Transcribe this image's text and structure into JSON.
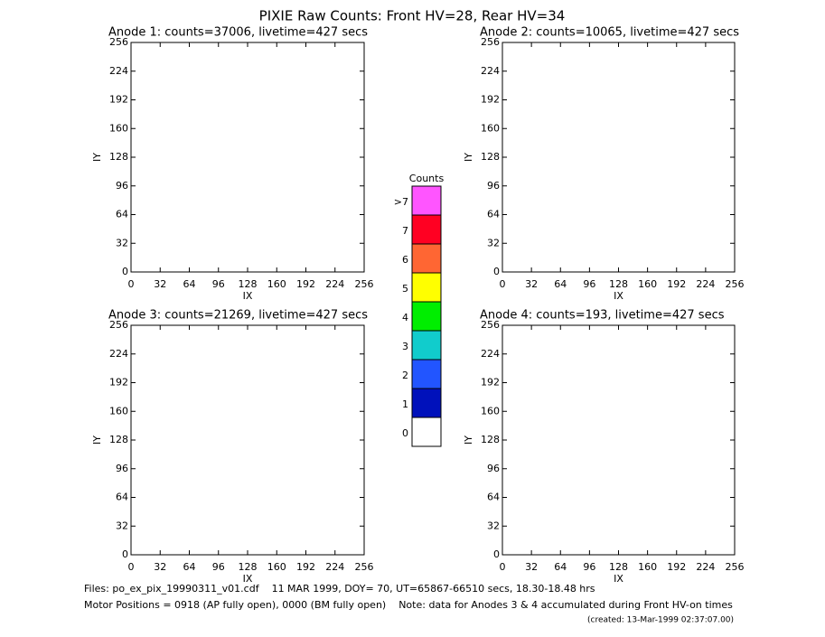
{
  "title": "PIXIE Raw Counts:  Front HV=28, Rear HV=34",
  "chart_data": [
    {
      "type": "image",
      "title": "Anode 1: counts=37006, livetime=427 secs",
      "xlabel": "IX",
      "ylabel": "IY",
      "xlim": [
        0,
        256
      ],
      "ylim": [
        0,
        256
      ],
      "xticks": [
        0,
        32,
        64,
        96,
        128,
        160,
        192,
        224,
        256
      ],
      "yticks": [
        0,
        32,
        64,
        96,
        128,
        160,
        192,
        224,
        256
      ]
    },
    {
      "type": "image",
      "title": "Anode 2: counts=10065, livetime=427 secs",
      "xlabel": "IX",
      "ylabel": "IY",
      "xlim": [
        0,
        256
      ],
      "ylim": [
        0,
        256
      ],
      "xticks": [
        0,
        32,
        64,
        96,
        128,
        160,
        192,
        224,
        256
      ],
      "yticks": [
        0,
        32,
        64,
        96,
        128,
        160,
        192,
        224,
        256
      ]
    },
    {
      "type": "image",
      "title": "Anode 3: counts=21269, livetime=427 secs",
      "xlabel": "IX",
      "ylabel": "IY",
      "xlim": [
        0,
        256
      ],
      "ylim": [
        0,
        256
      ],
      "xticks": [
        0,
        32,
        64,
        96,
        128,
        160,
        192,
        224,
        256
      ],
      "yticks": [
        0,
        32,
        64,
        96,
        128,
        160,
        192,
        224,
        256
      ]
    },
    {
      "type": "image",
      "title": "Anode 4: counts=193, livetime=427 secs",
      "xlabel": "IX",
      "ylabel": "IY",
      "xlim": [
        0,
        256
      ],
      "ylim": [
        0,
        256
      ],
      "xticks": [
        0,
        32,
        64,
        96,
        128,
        160,
        192,
        224,
        256
      ],
      "yticks": [
        0,
        32,
        64,
        96,
        128,
        160,
        192,
        224,
        256
      ]
    }
  ],
  "colorbar": {
    "title": "Counts",
    "levels": [
      {
        "label": ">7",
        "color": "#ff55ff"
      },
      {
        "label": "7",
        "color": "#ff0022"
      },
      {
        "label": "6",
        "color": "#ff6633"
      },
      {
        "label": "5",
        "color": "#ffff00"
      },
      {
        "label": "4",
        "color": "#00ee00"
      },
      {
        "label": "3",
        "color": "#11cccc"
      },
      {
        "label": "2",
        "color": "#2255ff"
      },
      {
        "label": "1",
        "color": "#0011bb"
      },
      {
        "label": "0",
        "color": "#ffffff"
      }
    ]
  },
  "footer": [
    "Files: po_ex_pix_19990311_v01.cdf    11 MAR 1999, DOY= 70, UT=65867-66510 secs, 18.30-18.48 hrs",
    "Motor Positions = 0918 (AP fully open), 0000 (BM fully open)    Note: data for Anodes 3 & 4 accumulated during Front HV-on times",
    "(created: 13-Mar-1999 02:37:07.00)"
  ]
}
